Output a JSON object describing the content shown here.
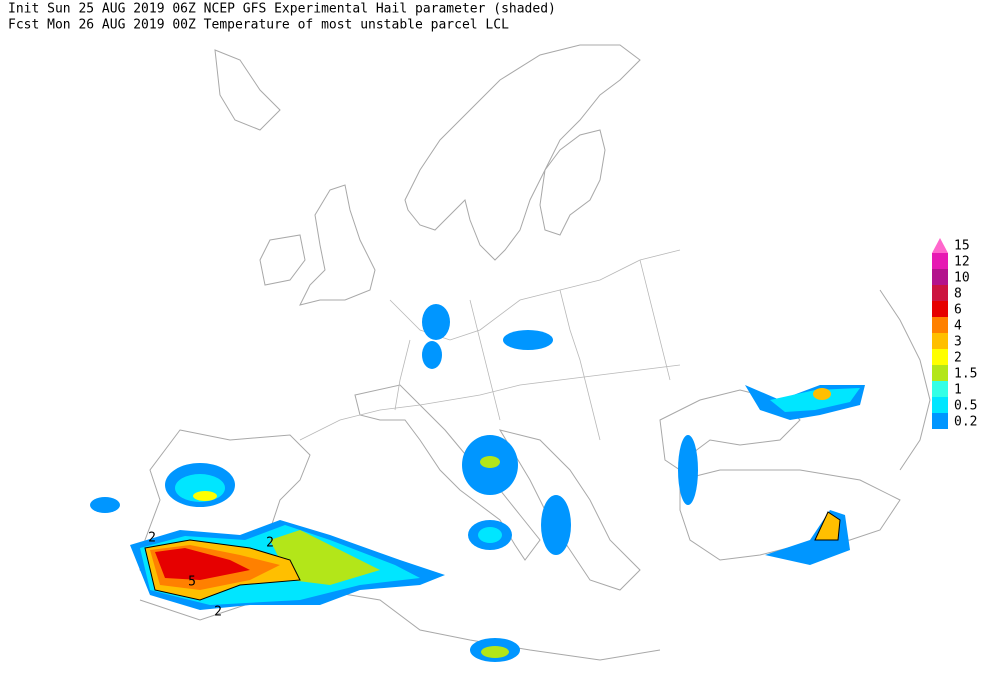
{
  "header": {
    "line1": "Init  Sun 25 AUG 2019 06Z  NCEP GFS Experimental Hail parameter (shaded)",
    "line2": "Fcst Mon 26 AUG 2019 00Z  Temperature of most unstable parcel LCL"
  },
  "legend": {
    "levels": [
      {
        "label": "15",
        "color": "#ff66cc"
      },
      {
        "label": "12",
        "color": "#e619b3"
      },
      {
        "label": "10",
        "color": "#b3138c"
      },
      {
        "label": "8",
        "color": "#cc1440"
      },
      {
        "label": "6",
        "color": "#e60000"
      },
      {
        "label": "4",
        "color": "#ff8000"
      },
      {
        "label": "3",
        "color": "#ffbf00"
      },
      {
        "label": "2",
        "color": "#ffff00"
      },
      {
        "label": "1.5",
        "color": "#b3e619"
      },
      {
        "label": "1",
        "color": "#33ffe6"
      },
      {
        "label": "0.5",
        "color": "#00e6ff"
      },
      {
        "label": "0.2",
        "color": "#0096ff"
      }
    ]
  },
  "contour_labels": [
    "2",
    "2",
    "5",
    "2"
  ]
}
